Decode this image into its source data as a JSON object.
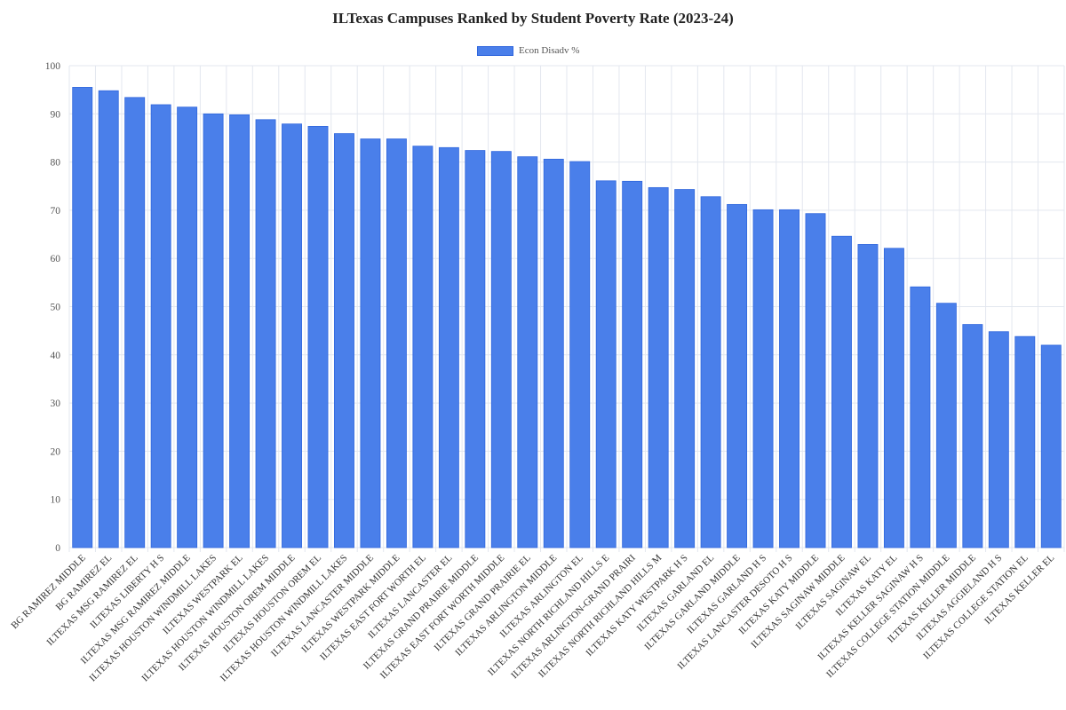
{
  "chart_data": {
    "type": "bar",
    "title": "ILTexas Campuses Ranked by Student Poverty Rate (2023-24)",
    "xlabel": "",
    "ylabel": "",
    "ylim": [
      0,
      100
    ],
    "yticks": [
      0,
      10,
      20,
      30,
      40,
      50,
      60,
      70,
      80,
      90,
      100
    ],
    "grid": true,
    "legend_position": "top-center",
    "colors": {
      "bar": "#4a7fea",
      "bar_border": "#2f66dd",
      "grid": "#e3e7ef"
    },
    "categories": [
      "BG RAMIREZ MIDDLE",
      "BG RAMIREZ EL",
      "ILTEXAS MSG RAMIREZ EL",
      "ILTEXAS LIBERTY H S",
      "ILTEXAS MSG RAMIREZ MIDDLE",
      "ILTEXAS HOUSTON WINDMILL LAKES",
      "ILTEXAS WESTPARK EL",
      "ILTEXAS HOUSTON WINDMILL LAKES",
      "ILTEXAS HOUSTON OREM MIDDLE",
      "ILTEXAS HOUSTON OREM EL",
      "ILTEXAS HOUSTON WINDMILL LAKES",
      "ILTEXAS LANCASTER MIDDLE",
      "ILTEXAS WESTPARK MIDDLE",
      "ILTEXAS EAST FORT WORTH EL",
      "ILTEXAS LANCASTER EL",
      "ILTEXAS GRAND PRAIRIE MIDDLE",
      "ILTEXAS EAST FORT WORTH MIDDLE",
      "ILTEXAS GRAND PRAIRIE EL",
      "ILTEXAS ARLINGTON MIDDLE",
      "ILTEXAS ARLINGTON EL",
      "ILTEXAS NORTH RICHLAND HILLS E",
      "ILTEXAS ARLINGTON-GRAND PRAIRI",
      "ILTEXAS NORTH RICHLAND HILLS M",
      "ILTEXAS KATY WESTPARK H S",
      "ILTEXAS GARLAND EL",
      "ILTEXAS GARLAND MIDDLE",
      "ILTEXAS GARLAND H S",
      "ILTEXAS LANCASTER DESOTO H S",
      "ILTEXAS KATY MIDDLE",
      "ILTEXAS SAGINAW MIDDLE",
      "ILTEXAS SAGINAW EL",
      "ILTEXAS KATY EL",
      "ILTEXAS KELLER SAGINAW H S",
      "ILTEXAS COLLEGE STATION MIDDLE",
      "ILTEXAS KELLER MIDDLE",
      "ILTEXAS AGGIELAND H S",
      "ILTEXAS COLLEGE STATION EL",
      "ILTEXAS KELLER EL"
    ],
    "series": [
      {
        "name": "Econ Disadv %",
        "values": [
          95.5,
          94.8,
          93.4,
          91.9,
          91.4,
          90.0,
          89.8,
          88.8,
          87.9,
          87.4,
          85.9,
          84.8,
          84.8,
          83.3,
          83.0,
          82.4,
          82.2,
          81.1,
          80.6,
          80.1,
          76.1,
          76.0,
          74.7,
          74.3,
          72.8,
          71.2,
          70.1,
          70.1,
          69.3,
          64.6,
          62.9,
          62.1,
          54.1,
          50.7,
          46.3,
          44.8,
          43.8,
          42.0
        ]
      }
    ]
  }
}
